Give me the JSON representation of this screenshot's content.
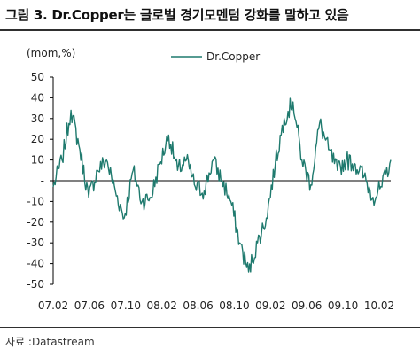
{
  "header": {
    "title": "그림 3.   Dr.Copper는 글로벌 경기모멘텀 강화를 말하고 있음"
  },
  "footer": {
    "source": "자료 :Datastream"
  },
  "chart_data": {
    "type": "line",
    "unit_label": "(mom,%)",
    "xlabel": "",
    "ylabel": "",
    "ylim": [
      -50,
      50
    ],
    "yticks": [
      50,
      40,
      30,
      20,
      10,
      0,
      -10,
      -20,
      -30,
      -40,
      -50
    ],
    "ytick_labels": [
      "50",
      "40",
      "30",
      "20",
      "10",
      "-",
      "-10",
      "-20",
      "-30",
      "-40",
      "-50"
    ],
    "xticks": [
      "07.02",
      "07.06",
      "07.10",
      "08.02",
      "08.06",
      "08.10",
      "09.02",
      "09.06",
      "09.10",
      "10.02"
    ],
    "grid": false,
    "legend": "top-center",
    "colors": {
      "line": "#1f7a6e",
      "axis": "#000000"
    },
    "series": [
      {
        "name": "Dr.Copper",
        "x": [
          "07.01",
          "07.02",
          "07.03",
          "07.04",
          "07.05",
          "07.06",
          "07.07",
          "07.08",
          "07.09",
          "07.10",
          "07.11",
          "07.12",
          "08.01",
          "08.02",
          "08.03",
          "08.04",
          "08.05",
          "08.06",
          "08.07",
          "08.08",
          "08.09",
          "08.10",
          "08.11",
          "08.12",
          "09.01",
          "09.02",
          "09.03",
          "09.04",
          "09.05",
          "09.06",
          "09.07",
          "09.08",
          "09.09",
          "09.10",
          "09.11",
          "09.12",
          "10.01",
          "10.02",
          "10.03"
        ],
        "values": [
          -3,
          10,
          34,
          15,
          -8,
          5,
          10,
          -5,
          -18,
          5,
          -10,
          -8,
          8,
          22,
          5,
          10,
          -3,
          -5,
          10,
          0,
          -10,
          -30,
          -44,
          -30,
          -18,
          8,
          30,
          38,
          10,
          -2,
          28,
          15,
          5,
          10,
          8,
          2,
          -8,
          -3,
          10
        ]
      }
    ]
  }
}
